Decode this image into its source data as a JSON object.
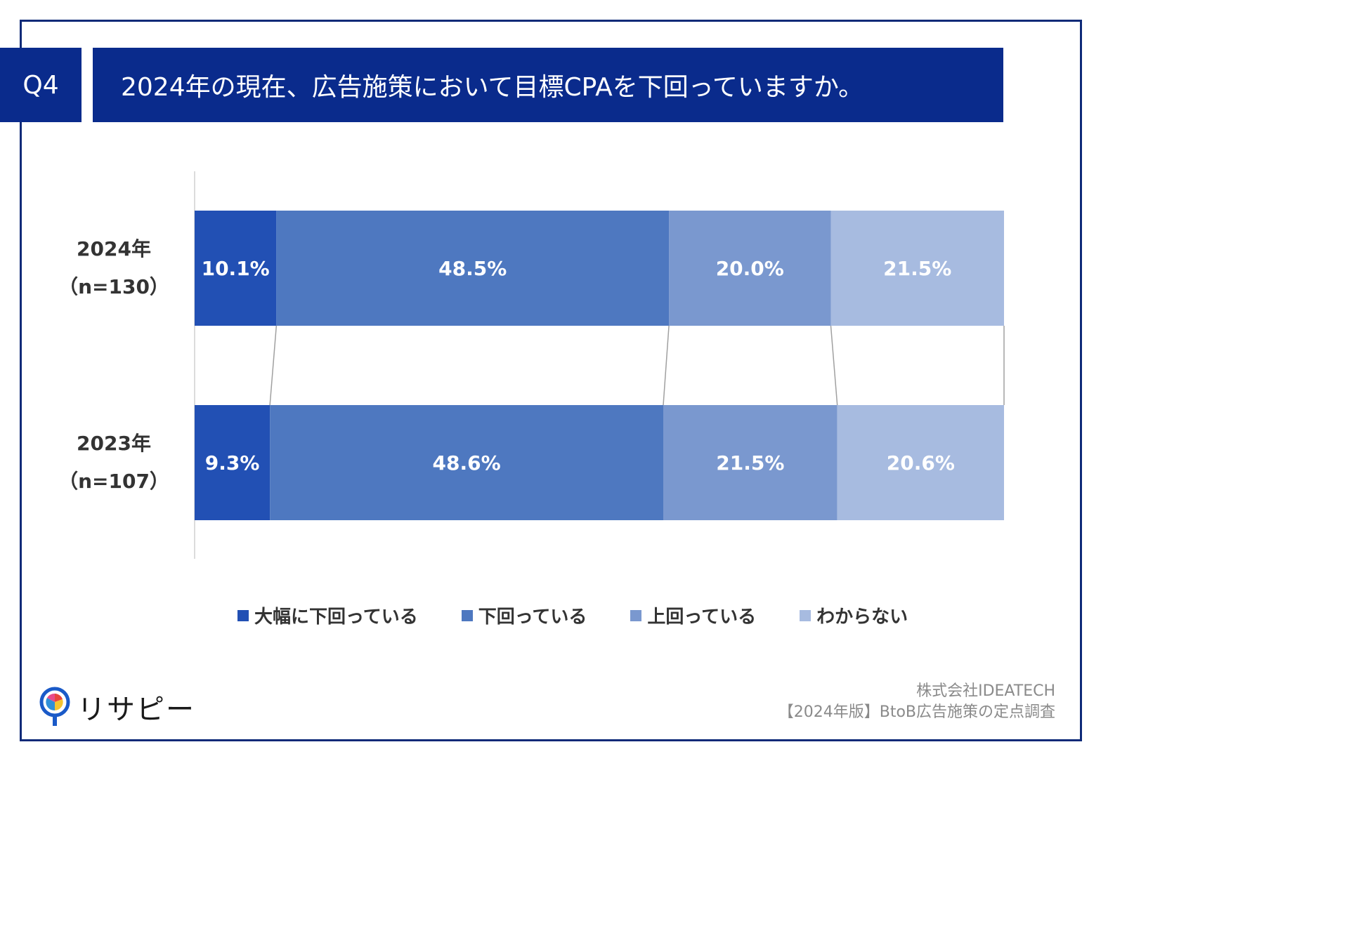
{
  "header": {
    "badge": "Q4",
    "title": "2024年の現在、広告施策において目標CPAを下回っていますか。"
  },
  "colors": {
    "navy": "#0a2b8c",
    "series": [
      "#2250b4",
      "#4e78c0",
      "#7a98cf",
      "#a7bbe0"
    ]
  },
  "chart_data": {
    "type": "bar",
    "orientation": "horizontal-stacked-100",
    "categories": [
      {
        "line1": "2024年",
        "line2": "（n=130）"
      },
      {
        "line1": "2023年",
        "line2": "（n=107）"
      }
    ],
    "series": [
      {
        "name": "大幅に下回っている",
        "values": [
          10.1,
          9.3
        ],
        "labels": [
          "10.1%",
          "9.3%"
        ]
      },
      {
        "name": "下回っている",
        "values": [
          48.5,
          48.6
        ],
        "labels": [
          "48.5%",
          "48.6%"
        ]
      },
      {
        "name": "上回っている",
        "values": [
          20.0,
          21.5
        ],
        "labels": [
          "20.0%",
          "21.5%"
        ]
      },
      {
        "name": "わからない",
        "values": [
          21.5,
          20.6
        ],
        "labels": [
          "21.5%",
          "20.6%"
        ]
      }
    ],
    "xlim": [
      0,
      100
    ],
    "legend_position": "bottom",
    "series_lines": true
  },
  "legend": [
    {
      "label": "大幅に下回っている"
    },
    {
      "label": "下回っている"
    },
    {
      "label": "上回っている"
    },
    {
      "label": "わからない"
    }
  ],
  "footer": {
    "logo_text": "リサピー",
    "company": "株式会社IDEATECH",
    "report": "【2024年版】BtoB広告施策の定点調査"
  }
}
